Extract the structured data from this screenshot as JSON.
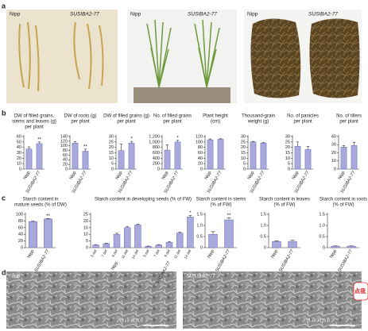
{
  "panels": {
    "a": "a",
    "b": "b",
    "c": "c",
    "d": "d"
  },
  "photos_a": [
    {
      "left": "Nipp",
      "right": "SUSIBA2-77"
    },
    {
      "left": "Nipp",
      "right": "SUSIBA2-77"
    },
    {
      "left": "Nipp",
      "right": "SUSIBA2-77"
    }
  ],
  "photos_d": [
    {
      "label": "Nipp",
      "scale": "15 kV ×1,000"
    },
    {
      "label": "SUSIBA2-77",
      "scale": "15 kV ×1,000"
    }
  ],
  "widget": "点我",
  "chart_data": [
    {
      "type": "bar",
      "title": [
        "DW of filled grains,",
        "stems and leaves (g)",
        "per plant"
      ],
      "categories": [
        "Nipp",
        "SUSIBA2-77"
      ],
      "values": [
        37,
        47
      ],
      "errors": [
        4,
        3
      ],
      "annotations": [
        {
          "index": 1,
          "text": "**"
        }
      ],
      "color": "#a9a9dc",
      "ylim": [
        0,
        60
      ],
      "yticks": [
        0,
        10,
        20,
        30,
        40,
        50,
        60
      ]
    },
    {
      "type": "bar",
      "title": [
        "DW of roots (g)",
        "per plant"
      ],
      "categories": [
        "Nipp",
        "SUSIBA2-77"
      ],
      "values": [
        112,
        77
      ],
      "errors": [
        6,
        9
      ],
      "annotations": [
        {
          "index": 1,
          "text": "**"
        }
      ],
      "color": "#a9a9dc",
      "ylim": [
        0,
        140
      ],
      "yticks": [
        0,
        20,
        40,
        60,
        80,
        100,
        120,
        140
      ]
    },
    {
      "type": "bar",
      "title": [
        "DW of filled grains (g)",
        "per plant"
      ],
      "categories": [
        "Nipp",
        "SUSIBA2-77"
      ],
      "values": [
        17,
        24
      ],
      "errors": [
        6,
        1.5
      ],
      "annotations": [
        {
          "index": 1,
          "text": "*"
        }
      ],
      "color": "#a9a9dc",
      "ylim": [
        0,
        30
      ],
      "yticks": [
        0,
        5,
        10,
        15,
        20,
        25,
        30
      ]
    },
    {
      "type": "bar",
      "title": [
        "No. of filled grains",
        "per plant"
      ],
      "categories": [
        "Nipp",
        "SUSIBA2-77"
      ],
      "values": [
        700,
        1000
      ],
      "errors": [
        200,
        60
      ],
      "annotations": [
        {
          "index": 1,
          "text": "*"
        }
      ],
      "color": "#a9a9dc",
      "ylim": [
        0,
        1200
      ],
      "yticks": [
        0,
        200,
        400,
        600,
        800,
        {
          "value": 1000,
          "label": "1,000"
        },
        {
          "value": 1200,
          "label": "1,200"
        }
      ]
    },
    {
      "type": "bar",
      "title": [
        "Plant height",
        "(cm)"
      ],
      "categories": [
        "Nipp",
        "SUSIBA2-77"
      ],
      "values": [
        108,
        110
      ],
      "errors": [
        3,
        2
      ],
      "color": "#a9a9dc",
      "ylim": [
        0,
        120
      ],
      "yticks": [
        0,
        20,
        40,
        60,
        80,
        100,
        120
      ]
    },
    {
      "type": "bar",
      "title": [
        "Thousand-grain",
        "weight (g)"
      ],
      "categories": [
        "Nipp",
        "SUSIBA2-77"
      ],
      "values": [
        25,
        24
      ],
      "errors": [
        0.5,
        0.5
      ],
      "color": "#a9a9dc",
      "ylim": [
        0,
        30
      ],
      "yticks": [
        0,
        5,
        10,
        15,
        20,
        25,
        30
      ]
    },
    {
      "type": "bar",
      "title": [
        "No. of panicles",
        "per plant"
      ],
      "categories": [
        "Nipp",
        "SUSIBA2-77"
      ],
      "values": [
        21,
        18
      ],
      "errors": [
        4,
        3
      ],
      "color": "#a9a9dc",
      "ylim": [
        0,
        30
      ],
      "yticks": [
        0,
        5,
        10,
        15,
        20,
        25,
        30
      ]
    },
    {
      "type": "bar",
      "title": [
        "No. of tillers",
        "per plant"
      ],
      "categories": [
        "Nipp",
        "SUSIBA2-77"
      ],
      "values": [
        27,
        29
      ],
      "errors": [
        2,
        4
      ],
      "color": "#a9a9dc",
      "ylim": [
        0,
        40
      ],
      "yticks": [
        0,
        10,
        20,
        30,
        40
      ]
    },
    {
      "type": "bar",
      "title": [
        "Starch content in",
        "mature seeds (% of DW)"
      ],
      "categories": [
        "Nipp",
        "SUSIBA2-77"
      ],
      "values": [
        78,
        86
      ],
      "errors": [
        1.5,
        1.5
      ],
      "annotations": [
        {
          "index": 1,
          "text": "**"
        }
      ],
      "color": "#a9a9dc",
      "ylim": [
        0,
        100
      ],
      "yticks": [
        0,
        20,
        40,
        60,
        80,
        100
      ]
    },
    {
      "type": "bar",
      "title": [
        "Starch content in developing seeds (% of FW)"
      ],
      "categories": [
        "5 daf",
        "7 daf",
        "9 daf",
        "11 daf",
        "14 daf",
        "5 daf",
        "7 daf",
        "9 daf",
        "11 daf",
        "14 daf"
      ],
      "groups": [
        "Nipp",
        "SUSIBA2-77"
      ],
      "values": [
        2,
        3,
        10,
        15,
        17,
        1,
        2,
        4,
        11,
        23
      ],
      "errors": [
        0.3,
        0.4,
        0.8,
        0.8,
        0.6,
        0.2,
        0.3,
        0.5,
        0.7,
        1.2
      ],
      "annotations": [
        {
          "index": 9,
          "text": "*"
        }
      ],
      "color": "#a9a9dc",
      "ylim": [
        0,
        25
      ],
      "yticks": [
        0,
        5,
        10,
        15,
        20,
        25
      ]
    },
    {
      "type": "bar",
      "title": [
        "Starch content in stems",
        "(% of FW)"
      ],
      "categories": [
        "Nipp",
        "SUSIBA2-77"
      ],
      "values": [
        0.6,
        1.25
      ],
      "errors": [
        0.12,
        0.1
      ],
      "annotations": [
        {
          "index": 1,
          "text": "**"
        }
      ],
      "color": "#a9a9dc",
      "ylim": [
        0,
        1.5
      ],
      "yticks": [
        0,
        0.5,
        {
          "value": 1,
          "label": "1.0"
        },
        1.5
      ]
    },
    {
      "type": "bar",
      "title": [
        "Starch content in leaves",
        "(% of FW)"
      ],
      "categories": [
        "Nipp",
        "SUSIBA2-77"
      ],
      "values": [
        0.28,
        0.28
      ],
      "errors": [
        0.03,
        0.06
      ],
      "color": "#a9a9dc",
      "ylim": [
        0,
        1.5
      ],
      "yticks": [
        0,
        0.5,
        {
          "value": 1,
          "label": "1.0"
        },
        1.5
      ]
    },
    {
      "type": "bar",
      "title": [
        "Starch content in roots",
        "(% of FW)"
      ],
      "categories": [
        "Nipp",
        "SUSIBA2-77"
      ],
      "values": [
        0.07,
        0.07
      ],
      "errors": [
        0.01,
        0.01
      ],
      "color": "#a9a9dc",
      "ylim": [
        0,
        1.5
      ],
      "yticks": [
        0,
        0.5,
        {
          "value": 1,
          "label": "1.0"
        },
        1.5
      ]
    }
  ]
}
